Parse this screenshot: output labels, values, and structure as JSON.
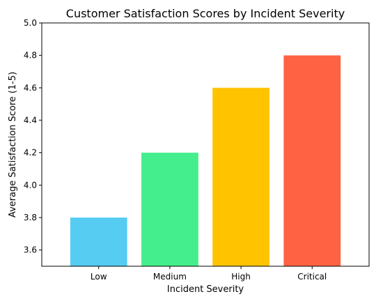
{
  "chart_data": {
    "type": "bar",
    "title": "Customer Satisfaction Scores by Incident Severity",
    "xlabel": "Incident Severity",
    "ylabel": "Average Satisfaction Score (1-5)",
    "categories": [
      "Low",
      "Medium",
      "High",
      "Critical"
    ],
    "values": [
      3.8,
      4.2,
      4.6,
      4.8
    ],
    "colors": [
      "#56CCF2",
      "#44EE8C",
      "#FFC300",
      "#FF6243"
    ],
    "ylim": [
      3.5,
      5.0
    ],
    "yticks": [
      "3.6",
      "3.8",
      "4.0",
      "4.2",
      "4.4",
      "4.6",
      "4.8",
      "5.0"
    ],
    "grid": false,
    "legend": "none"
  }
}
